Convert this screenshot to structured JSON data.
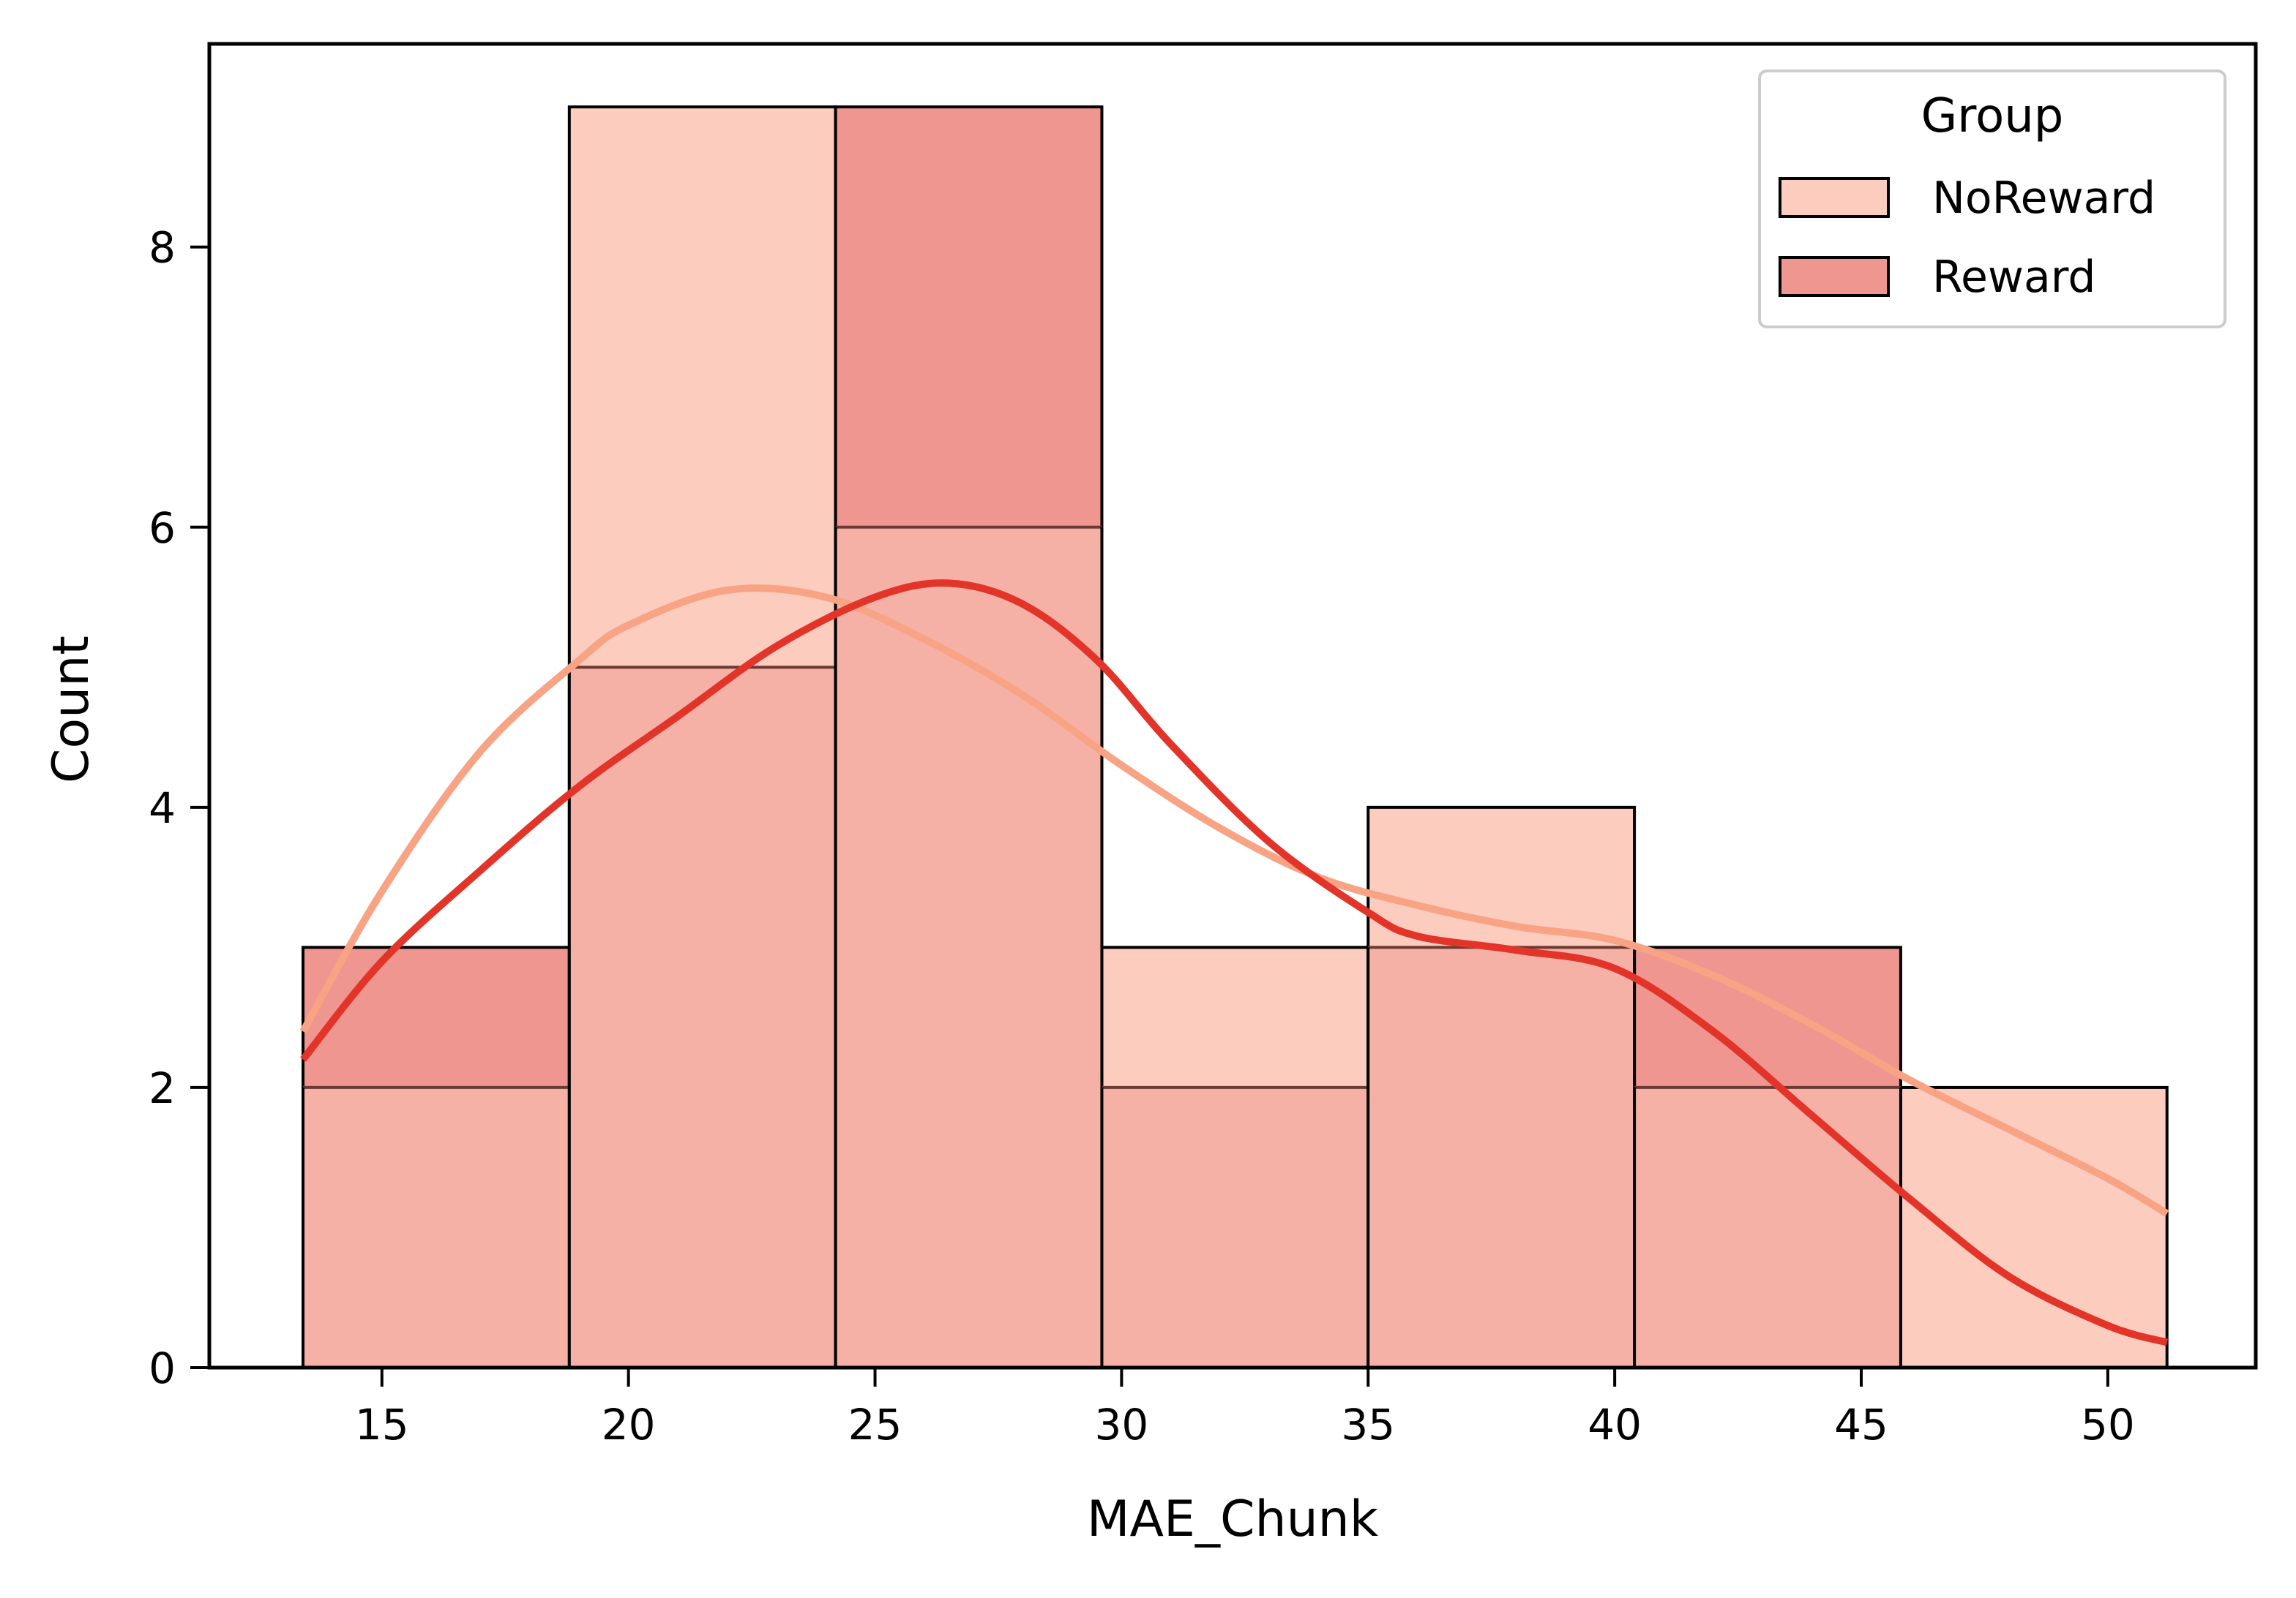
{
  "chart_data": {
    "type": "histogram",
    "title": "",
    "xlabel": "MAE_Chunk",
    "ylabel": "Count",
    "xlim": [
      11.5,
      53.0
    ],
    "ylim": [
      0,
      9.45
    ],
    "xticks": [
      15,
      20,
      25,
      30,
      35,
      40,
      45,
      50
    ],
    "yticks": [
      0,
      2,
      4,
      6,
      8
    ],
    "grid": false,
    "legend": {
      "title": "Group",
      "position": "top-right"
    },
    "bin_edges": [
      13.4,
      18.8,
      24.2,
      29.6,
      35.0,
      40.4,
      45.8,
      51.2
    ],
    "series": [
      {
        "name": "NoReward",
        "fill_color": "#fcccbe",
        "line_color": "#f8a384",
        "counts": [
          2,
          9,
          6,
          3,
          4,
          2,
          2
        ],
        "kde": {
          "x": [
            13.4,
            15,
            17,
            19,
            20,
            22,
            24,
            26,
            28,
            30,
            32,
            34,
            36,
            38,
            40,
            42,
            44,
            46,
            48,
            50,
            51.2
          ],
          "y": [
            2.4,
            3.4,
            4.4,
            5.05,
            5.3,
            5.55,
            5.5,
            5.2,
            4.8,
            4.3,
            3.85,
            3.5,
            3.3,
            3.15,
            3.05,
            2.8,
            2.45,
            2.05,
            1.7,
            1.35,
            1.1
          ]
        }
      },
      {
        "name": "Reward",
        "fill_color": "#ef9690",
        "line_color": "#e3342a",
        "counts": [
          3,
          5,
          9,
          2,
          3,
          3,
          0
        ],
        "kde": {
          "x": [
            13.4,
            15,
            17,
            19,
            21,
            23,
            25,
            26.5,
            28,
            29.5,
            31,
            33,
            35,
            36,
            38,
            40,
            42,
            44,
            46,
            48,
            50,
            51.2
          ],
          "y": [
            2.2,
            2.9,
            3.55,
            4.15,
            4.65,
            5.15,
            5.5,
            5.6,
            5.45,
            5.05,
            4.45,
            3.75,
            3.25,
            3.08,
            2.98,
            2.85,
            2.4,
            1.8,
            1.2,
            0.65,
            0.3,
            0.18
          ]
        }
      }
    ]
  }
}
